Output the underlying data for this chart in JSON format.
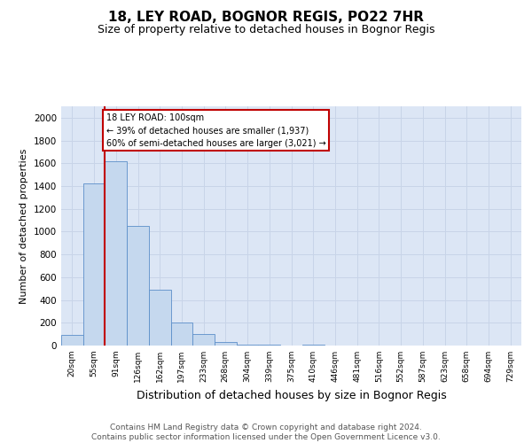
{
  "title": "18, LEY ROAD, BOGNOR REGIS, PO22 7HR",
  "subtitle": "Size of property relative to detached houses in Bognor Regis",
  "xlabel": "Distribution of detached houses by size in Bognor Regis",
  "ylabel": "Number of detached properties",
  "bins": [
    "20sqm",
    "55sqm",
    "91sqm",
    "126sqm",
    "162sqm",
    "197sqm",
    "233sqm",
    "268sqm",
    "304sqm",
    "339sqm",
    "375sqm",
    "410sqm",
    "446sqm",
    "481sqm",
    "516sqm",
    "552sqm",
    "587sqm",
    "623sqm",
    "658sqm",
    "694sqm",
    "729sqm"
  ],
  "values": [
    90,
    1420,
    1620,
    1050,
    490,
    200,
    100,
    30,
    10,
    5,
    3,
    5,
    0,
    0,
    0,
    0,
    0,
    0,
    0,
    0,
    0
  ],
  "bar_color": "#c5d8ee",
  "bar_edge_color": "#5b8fc9",
  "highlight_bin_index": 2,
  "highlight_line_color": "#c00000",
  "annotation_line1": "18 LEY ROAD: 100sqm",
  "annotation_line2": "← 39% of detached houses are smaller (1,937)",
  "annotation_line3": "60% of semi-detached houses are larger (3,021) →",
  "annotation_box_color": "#c00000",
  "footer_text": "Contains HM Land Registry data © Crown copyright and database right 2024.\nContains public sector information licensed under the Open Government Licence v3.0.",
  "title_fontsize": 11,
  "subtitle_fontsize": 9,
  "xlabel_fontsize": 9,
  "ylabel_fontsize": 8,
  "yticks": [
    0,
    200,
    400,
    600,
    800,
    1000,
    1200,
    1400,
    1600,
    1800,
    2000
  ],
  "ylim": [
    0,
    2100
  ],
  "grid_color": "#c8d4e8",
  "background_color": "#dce6f5"
}
